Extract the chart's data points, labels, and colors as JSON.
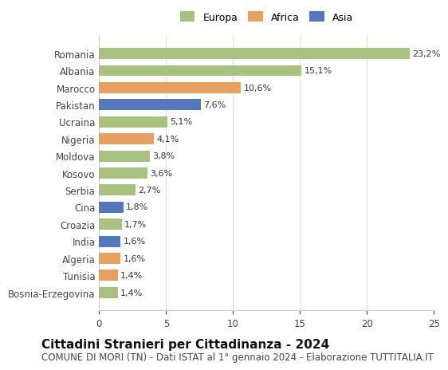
{
  "categories": [
    "Bosnia-Erzegovina",
    "Tunisia",
    "Algeria",
    "India",
    "Croazia",
    "Cina",
    "Serbia",
    "Kosovo",
    "Moldova",
    "Nigeria",
    "Ucraina",
    "Pakistan",
    "Marocco",
    "Albania",
    "Romania"
  ],
  "values": [
    1.4,
    1.4,
    1.6,
    1.6,
    1.7,
    1.8,
    2.7,
    3.6,
    3.8,
    4.1,
    5.1,
    7.6,
    10.6,
    15.1,
    23.2
  ],
  "labels": [
    "1,4%",
    "1,4%",
    "1,6%",
    "1,6%",
    "1,7%",
    "1,8%",
    "2,7%",
    "3,6%",
    "3,8%",
    "4,1%",
    "5,1%",
    "7,6%",
    "10,6%",
    "15,1%",
    "23,2%"
  ],
  "colors": [
    "#a8c080",
    "#e8a060",
    "#e8a060",
    "#5577bb",
    "#a8c080",
    "#5577bb",
    "#a8c080",
    "#a8c080",
    "#a8c080",
    "#e8a060",
    "#a8c080",
    "#5577bb",
    "#e8a060",
    "#a8c080",
    "#a8c080"
  ],
  "continent_colors": {
    "Europa": "#a8c080",
    "Africa": "#e8a060",
    "Asia": "#5577bb"
  },
  "title": "Cittadini Stranieri per Cittadinanza - 2024",
  "subtitle": "COMUNE DI MORI (TN) - Dati ISTAT al 1° gennaio 2024 - Elaborazione TUTTITALIA.IT",
  "xlim": [
    0,
    25
  ],
  "xticks": [
    0,
    5,
    10,
    15,
    20,
    25
  ],
  "background_color": "#ffffff",
  "bar_height": 0.65,
  "grid_color": "#dddddd",
  "title_fontsize": 11,
  "subtitle_fontsize": 8.5,
  "label_fontsize": 8,
  "tick_fontsize": 8.5,
  "legend_fontsize": 9
}
